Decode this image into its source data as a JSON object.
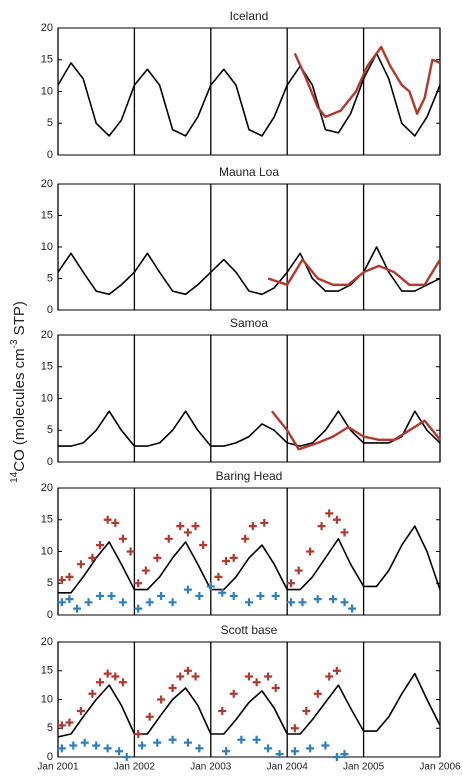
{
  "x_axis": {
    "xlim": [
      2001,
      2006
    ],
    "xticks": [
      {
        "value": 2001,
        "label": "Jan 2001"
      },
      {
        "value": 2002,
        "label": "Jan 2002"
      },
      {
        "value": 2003,
        "label": "Jan 2003"
      },
      {
        "value": 2004,
        "label": "Jan 2004"
      },
      {
        "value": 2005,
        "label": "Jan 2005"
      },
      {
        "value": 2006,
        "label": "Jan 2006"
      }
    ]
  },
  "y_label": [
    {
      "text": "14",
      "sup": true
    },
    {
      "text": "CO (molecules cm",
      "sup": false
    },
    {
      "text": "-3",
      "sup": true
    },
    {
      "text": " STP)",
      "sup": false
    }
  ],
  "chart_data": [
    {
      "type": "line",
      "title": "Iceland",
      "ylim": [
        0,
        20
      ],
      "yticks": [
        0,
        5,
        10,
        15,
        20
      ],
      "series": [
        {
          "color": "#000000",
          "marker": "none",
          "x": [
            2001,
            2001.17,
            2001.33,
            2001.5,
            2001.67,
            2001.83,
            2002,
            2002.17,
            2002.33,
            2002.5,
            2002.67,
            2002.83,
            2003,
            2003.17,
            2003.33,
            2003.5,
            2003.67,
            2003.83,
            2004,
            2004.17,
            2004.33,
            2004.5,
            2004.67,
            2004.83,
            2005,
            2005.17,
            2005.33,
            2005.5,
            2005.67,
            2005.83,
            2006
          ],
          "values": [
            11,
            14.5,
            12,
            5,
            3,
            5.5,
            11,
            13.5,
            11,
            4,
            3,
            6,
            11,
            13.5,
            11,
            4,
            3,
            6,
            11,
            14,
            11,
            4,
            3.5,
            6.5,
            12,
            16,
            12,
            5,
            3,
            6,
            11
          ]
        },
        {
          "color": "#b03a2e",
          "marker": "none",
          "x": [
            2004.1,
            2004.25,
            2004.4,
            2004.5,
            2004.7,
            2004.9,
            2005.05,
            2005.23,
            2005.35,
            2005.5,
            2005.6,
            2005.7,
            2005.8,
            2005.9,
            2006
          ],
          "values": [
            16,
            12,
            7.5,
            6,
            7,
            10,
            14,
            17,
            14,
            11,
            10,
            6.5,
            9,
            15,
            14.5
          ]
        }
      ]
    },
    {
      "type": "line",
      "title": "Mauna Loa",
      "ylim": [
        0,
        20
      ],
      "yticks": [
        0,
        5,
        10,
        15,
        20
      ],
      "series": [
        {
          "color": "#000000",
          "marker": "none",
          "x": [
            2001,
            2001.17,
            2001.33,
            2001.5,
            2001.67,
            2001.83,
            2002,
            2002.17,
            2002.33,
            2002.5,
            2002.67,
            2002.83,
            2003,
            2003.17,
            2003.33,
            2003.5,
            2003.67,
            2003.83,
            2004,
            2004.17,
            2004.33,
            2004.5,
            2004.67,
            2004.83,
            2005,
            2005.17,
            2005.33,
            2005.5,
            2005.67,
            2005.83,
            2006
          ],
          "values": [
            6,
            9,
            6,
            3,
            2.5,
            4,
            6,
            9,
            6,
            3,
            2.5,
            4,
            6,
            8,
            6,
            3,
            2.5,
            3.5,
            6,
            9,
            5,
            3,
            3,
            4,
            6,
            10,
            6,
            3,
            3,
            4,
            5
          ]
        },
        {
          "color": "#b03a2e",
          "marker": "none",
          "x": [
            2003.75,
            2004,
            2004.2,
            2004.4,
            2004.6,
            2004.8,
            2005,
            2005.2,
            2005.4,
            2005.6,
            2005.8,
            2006
          ],
          "values": [
            5,
            4,
            8,
            5,
            4,
            4,
            6,
            7,
            6,
            4,
            4,
            8
          ]
        }
      ]
    },
    {
      "type": "line",
      "title": "Samoa",
      "ylim": [
        0,
        20
      ],
      "yticks": [
        0,
        5,
        10,
        15,
        20
      ],
      "series": [
        {
          "color": "#000000",
          "marker": "none",
          "x": [
            2001,
            2001.17,
            2001.33,
            2001.5,
            2001.67,
            2001.83,
            2002,
            2002.17,
            2002.33,
            2002.5,
            2002.67,
            2002.83,
            2003,
            2003.17,
            2003.33,
            2003.5,
            2003.67,
            2003.83,
            2004,
            2004.17,
            2004.33,
            2004.5,
            2004.67,
            2004.83,
            2005,
            2005.17,
            2005.33,
            2005.5,
            2005.67,
            2005.83,
            2006
          ],
          "values": [
            2.5,
            2.5,
            3,
            5,
            8,
            5,
            2.5,
            2.5,
            3,
            5,
            8,
            5,
            2.5,
            2.5,
            3,
            4,
            6,
            5,
            3,
            2.5,
            3,
            5,
            8,
            5,
            3,
            3,
            3,
            4,
            8,
            5,
            3
          ]
        },
        {
          "color": "#b03a2e",
          "marker": "none",
          "x": [
            2003.8,
            2004,
            2004.15,
            2004.4,
            2004.6,
            2004.8,
            2005,
            2005.2,
            2005.4,
            2005.6,
            2005.8,
            2006
          ],
          "values": [
            8,
            5,
            2,
            3,
            4,
            5.5,
            4,
            3.5,
            3.5,
            5,
            6.5,
            3.5
          ]
        }
      ]
    },
    {
      "type": "line",
      "title": "Baring Head",
      "ylim": [
        0,
        20
      ],
      "yticks": [
        0,
        5,
        10,
        15,
        20
      ],
      "series": [
        {
          "color": "#000000",
          "marker": "none",
          "x": [
            2001,
            2001.17,
            2001.33,
            2001.5,
            2001.67,
            2001.83,
            2002,
            2002.17,
            2002.33,
            2002.5,
            2002.67,
            2002.83,
            2003,
            2003.17,
            2003.33,
            2003.5,
            2003.67,
            2003.83,
            2004,
            2004.17,
            2004.33,
            2004.5,
            2004.67,
            2004.83,
            2005,
            2005.17,
            2005.33,
            2005.5,
            2005.67,
            2005.83,
            2006
          ],
          "values": [
            3.5,
            3.5,
            6,
            9,
            11.5,
            8,
            4,
            4,
            6,
            9,
            11.5,
            8,
            4,
            4,
            6,
            9,
            11,
            8,
            4,
            4,
            6,
            9,
            12,
            8,
            4.5,
            4.5,
            7,
            11,
            14,
            10,
            4
          ]
        },
        {
          "color": "#b03a2e",
          "marker": "plus",
          "x": [
            2001.05,
            2001.15,
            2001.3,
            2001.45,
            2001.55,
            2001.65,
            2001.75,
            2001.85,
            2001.95,
            2002.05,
            2002.15,
            2002.3,
            2002.45,
            2002.6,
            2002.7,
            2002.8,
            2002.9,
            2003.1,
            2003.2,
            2003.3,
            2003.45,
            2003.55,
            2003.7,
            2004.05,
            2004.15,
            2004.3,
            2004.45,
            2004.55,
            2004.65,
            2004.75
          ],
          "values": [
            5.5,
            6,
            8,
            9,
            11,
            15,
            14.5,
            12,
            10,
            5,
            7,
            9,
            12,
            14,
            13,
            14,
            11,
            6,
            8.5,
            9,
            12,
            14,
            14.5,
            5,
            7,
            10,
            14,
            16,
            15,
            13
          ]
        },
        {
          "color": "#2e7fc0",
          "marker": "plus",
          "x": [
            2001.05,
            2001.15,
            2001.25,
            2001.4,
            2001.55,
            2001.7,
            2001.85,
            2002.05,
            2002.2,
            2002.35,
            2002.5,
            2002.7,
            2002.85,
            2003,
            2003.15,
            2003.3,
            2003.5,
            2003.65,
            2003.85,
            2004.05,
            2004.2,
            2004.4,
            2004.6,
            2004.75,
            2004.85
          ],
          "values": [
            2,
            2.5,
            1,
            2,
            3,
            3,
            2,
            1,
            2,
            3,
            2,
            4,
            3,
            4.5,
            3.5,
            3,
            2,
            3,
            3,
            2,
            2,
            2.5,
            2.5,
            2,
            1
          ]
        }
      ]
    },
    {
      "type": "line",
      "title": "Scott base",
      "ylim": [
        0,
        20
      ],
      "yticks": [
        0,
        5,
        10,
        15,
        20
      ],
      "series": [
        {
          "color": "#000000",
          "marker": "none",
          "x": [
            2001,
            2001.17,
            2001.33,
            2001.5,
            2001.67,
            2001.83,
            2002,
            2002.17,
            2002.33,
            2002.5,
            2002.67,
            2002.83,
            2003,
            2003.17,
            2003.33,
            2003.5,
            2003.67,
            2003.83,
            2004,
            2004.17,
            2004.33,
            2004.5,
            2004.67,
            2004.83,
            2005,
            2005.17,
            2005.33,
            2005.5,
            2005.67,
            2005.83,
            2006
          ],
          "values": [
            3.5,
            4,
            7,
            10,
            12.5,
            9,
            4,
            4,
            7,
            10,
            12,
            9,
            4,
            4,
            6.5,
            9.5,
            11.5,
            8.5,
            4,
            4,
            6.5,
            9.5,
            12.5,
            8.5,
            4.5,
            4.5,
            7,
            11,
            14.5,
            10,
            5.5
          ]
        },
        {
          "color": "#b03a2e",
          "marker": "plus",
          "x": [
            2001.05,
            2001.15,
            2001.3,
            2001.45,
            2001.55,
            2001.65,
            2001.75,
            2001.85,
            2002.05,
            2002.2,
            2002.35,
            2002.5,
            2002.6,
            2002.7,
            2002.8,
            2003.15,
            2003.3,
            2003.5,
            2003.6,
            2003.75,
            2003.85,
            2004.1,
            2004.25,
            2004.4,
            2004.55,
            2004.65
          ],
          "values": [
            5.5,
            6,
            8,
            11,
            13,
            14.5,
            14,
            13,
            4,
            7,
            10,
            12,
            14,
            15,
            14,
            8,
            11,
            14,
            13,
            14,
            12,
            5,
            8,
            11,
            14,
            15
          ]
        },
        {
          "color": "#2e7fc0",
          "marker": "plus",
          "x": [
            2001.05,
            2001.2,
            2001.35,
            2001.5,
            2001.65,
            2001.8,
            2001.9,
            2002.1,
            2002.3,
            2002.5,
            2002.7,
            2002.85,
            2003.2,
            2003.4,
            2003.6,
            2003.75,
            2003.9,
            2004.1,
            2004.3,
            2004.5,
            2004.65,
            2004.75
          ],
          "values": [
            1.5,
            2,
            2.5,
            2,
            1.5,
            1,
            0,
            2,
            2.5,
            3,
            2.5,
            1.5,
            1,
            3,
            3,
            1.5,
            0.5,
            1,
            1.5,
            2,
            0,
            0.5
          ]
        }
      ]
    }
  ]
}
